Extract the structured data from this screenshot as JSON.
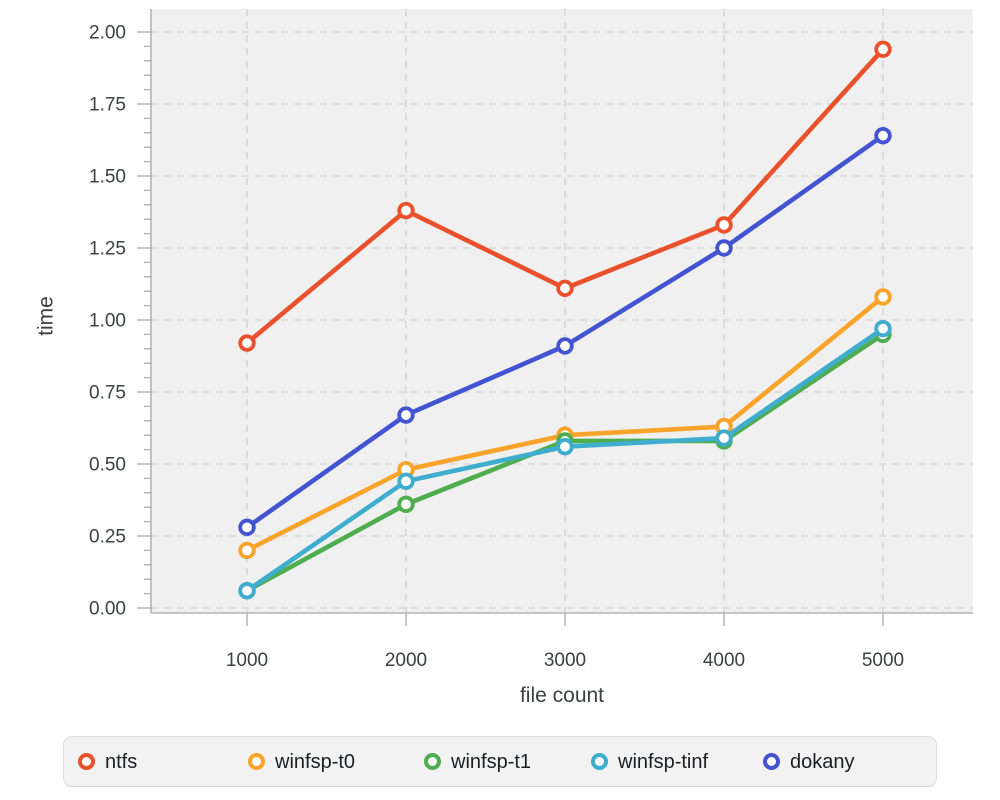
{
  "chart_data": {
    "type": "line",
    "title": "",
    "xlabel": "file count",
    "ylabel": "time",
    "x": [
      1000,
      2000,
      3000,
      4000,
      5000
    ],
    "x_tick_labels": [
      "1000",
      "2000",
      "3000",
      "4000",
      "5000"
    ],
    "y_tick_labels": [
      "0.00",
      "0.25",
      "0.50",
      "0.75",
      "1.00",
      "1.25",
      "1.50",
      "1.75",
      "2.00"
    ],
    "ylim": [
      0,
      2.0
    ],
    "y_major_step": 0.25,
    "y_minor_step": 0.05,
    "grid": "dashed",
    "legend_position": "bottom",
    "series": [
      {
        "name": "ntfs",
        "color": "#e9512c",
        "values": [
          0.92,
          1.38,
          1.11,
          1.33,
          1.94
        ]
      },
      {
        "name": "winfsp-t0",
        "color": "#f8a42a",
        "values": [
          0.2,
          0.48,
          0.6,
          0.63,
          1.08
        ]
      },
      {
        "name": "winfsp-t1",
        "color": "#4fad4f",
        "values": [
          0.06,
          0.36,
          0.58,
          0.58,
          0.95
        ]
      },
      {
        "name": "winfsp-tinf",
        "color": "#3fadce",
        "values": [
          0.06,
          0.44,
          0.56,
          0.59,
          0.97
        ]
      },
      {
        "name": "dokany",
        "color": "#4354d2",
        "values": [
          0.28,
          0.67,
          0.91,
          1.25,
          1.64
        ]
      }
    ]
  },
  "styles": {
    "page_bg": "#ffffff",
    "plot_bg": "#f0f0f0",
    "grid_color": "#d8d8d8",
    "axis_color": "#b4b4b4",
    "tick_label_color": "#3d4043",
    "axis_title_color": "#3d4043",
    "legend_bg": "#f2f2f2",
    "legend_border": "#dcdcdc",
    "legend_text_color": "#1b1f24"
  }
}
